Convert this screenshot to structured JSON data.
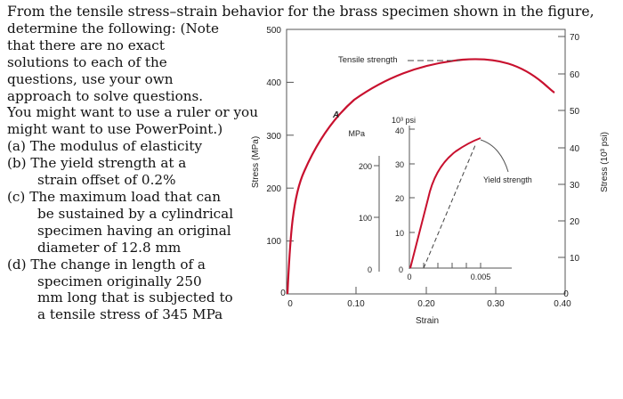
{
  "problem": {
    "intro": [
      "From the tensile stress–strain behavior for the brass specimen shown in the figure,",
      "determine the following: (Note",
      "that there are no exact",
      "solutions to each of the",
      "questions, use your own",
      "approach to solve questions.",
      "You might want to use a ruler or you",
      "might want to use PowerPoint.)"
    ],
    "parts": [
      {
        "label": "(a)",
        "lines": [
          "The modulus of elasticity"
        ]
      },
      {
        "label": "(b)",
        "lines": [
          "The yield strength at a",
          "strain offset of 0.2%"
        ]
      },
      {
        "label": "(c)",
        "lines": [
          "The maximum load that can",
          "be sustained by a cylindrical",
          "specimen having an original",
          "diameter of 12.8 mm"
        ]
      },
      {
        "label": "(d)",
        "lines": [
          "The change in length of a",
          "specimen originally 250",
          "mm long that is subjected to",
          "a tensile stress of 345 MPa"
        ]
      }
    ]
  },
  "figure": {
    "curve_color": "#c8102e",
    "main": {
      "y_ticks_mpa": [
        "0",
        "100",
        "200",
        "300",
        "400",
        "500"
      ],
      "y_ticks_ksi": [
        "0",
        "10",
        "20",
        "30",
        "40",
        "50",
        "60",
        "70"
      ],
      "x_ticks": [
        "0",
        "0.10",
        "0.20",
        "0.30",
        "0.40"
      ],
      "left_axis_label": "Stress (MPa)",
      "right_axis_label": "Stress (10³ psi)",
      "x_axis_label": "Strain",
      "point_label": "A",
      "tensile_label": "Tensile strength",
      "ultimate_stress_mpa": 450
    },
    "inset": {
      "mpa_ticks": [
        "0",
        "100",
        "200"
      ],
      "ksi_ticks": [
        "0",
        "10",
        "20",
        "30",
        "40"
      ],
      "ksi_unit": "10³ psi",
      "mpa_unit": "MPa",
      "x_tick_labels": [
        "0",
        "0.005"
      ],
      "yield_label": "Yield strength"
    }
  }
}
